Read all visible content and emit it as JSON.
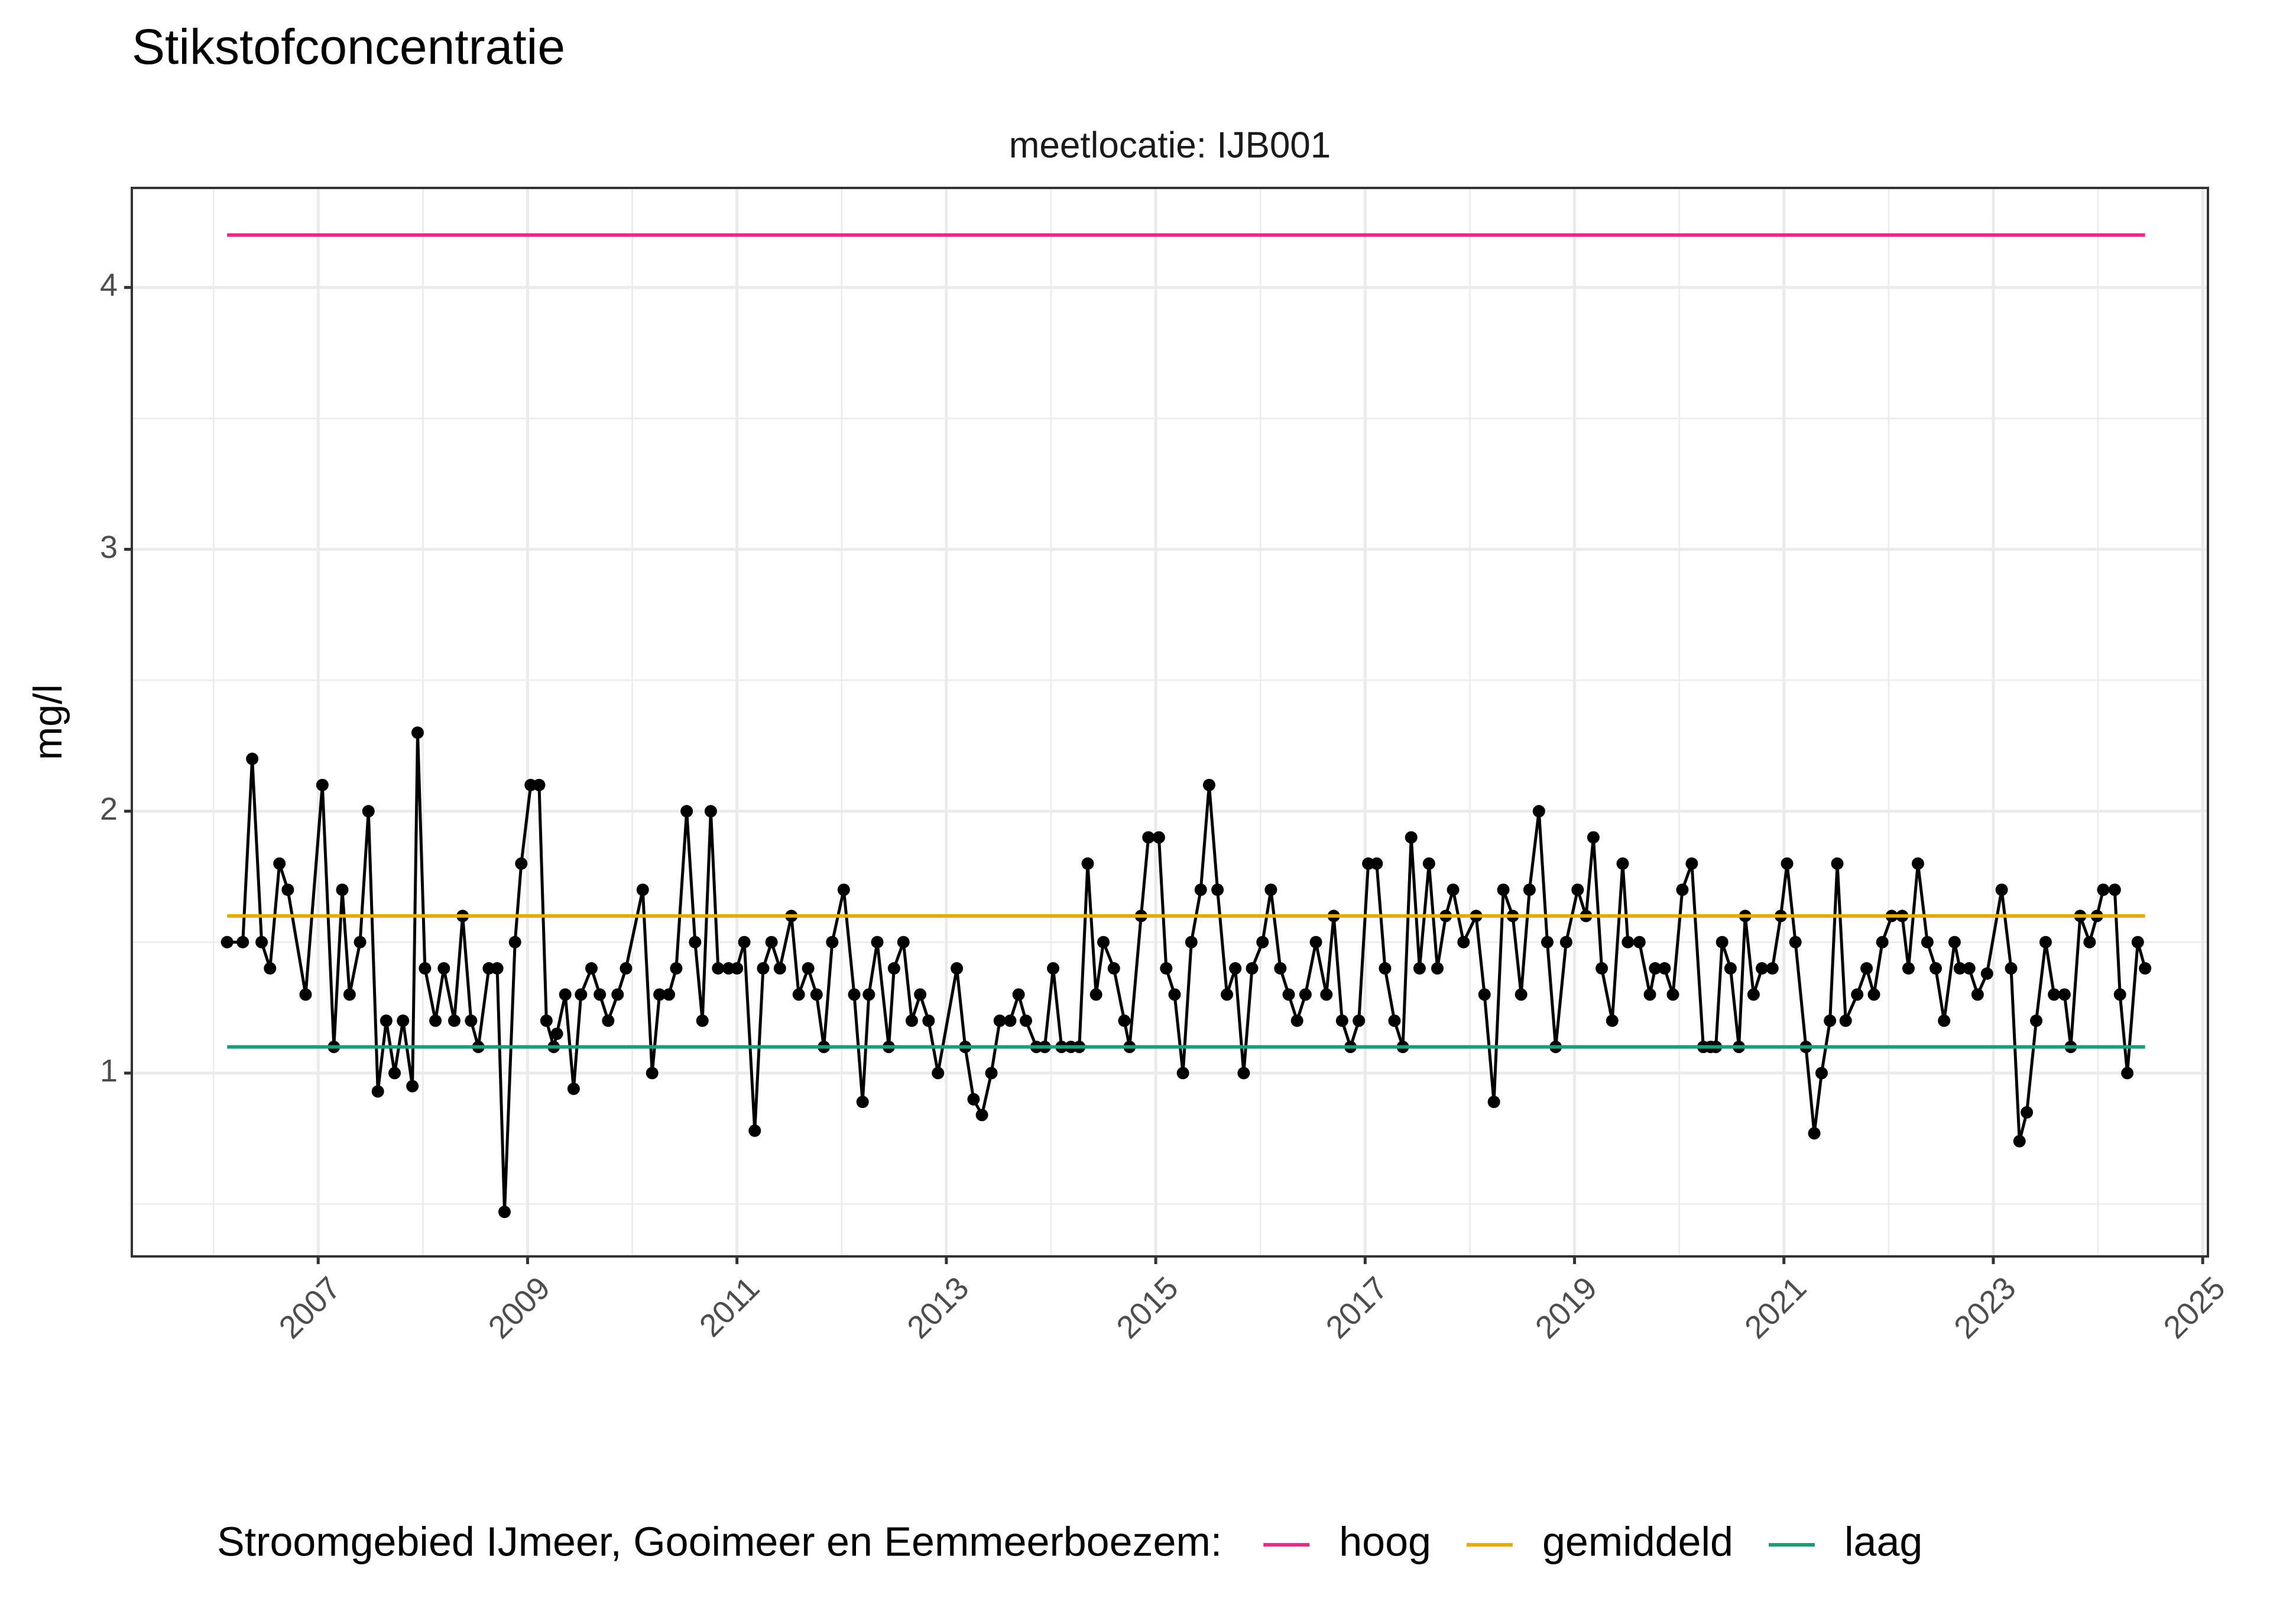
{
  "chart_data": {
    "type": "line",
    "title": "Stikstofconcentratie",
    "subtitle": "meetlocatie: IJB001",
    "y_label": "mg/l",
    "legend_title": "Stroomgebied IJmeer, Gooimeer en Eemmeerboezem:",
    "legend_position": "bottom",
    "grid": true,
    "xlim": [
      2005.22,
      2025.05
    ],
    "ylim": [
      0.3,
      4.38
    ],
    "xticks": [
      2007,
      2009,
      2011,
      2013,
      2015,
      2017,
      2019,
      2021,
      2023,
      2025
    ],
    "yticks": [
      1,
      2,
      3,
      4
    ],
    "series": [
      {
        "color": "#000000",
        "markers": true,
        "x": [
          2006.13,
          2006.28,
          2006.37,
          2006.46,
          2006.54,
          2006.63,
          2006.71,
          2006.88,
          2007.04,
          2007.15,
          2007.23,
          2007.3,
          2007.4,
          2007.48,
          2007.57,
          2007.65,
          2007.73,
          2007.81,
          2007.9,
          2007.95,
          2008.02,
          2008.12,
          2008.2,
          2008.3,
          2008.38,
          2008.46,
          2008.53,
          2008.63,
          2008.71,
          2008.78,
          2008.88,
          2008.94,
          2009.03,
          2009.11,
          2009.18,
          2009.25,
          2009.28,
          2009.36,
          2009.44,
          2009.51,
          2009.61,
          2009.69,
          2009.77,
          2009.86,
          2009.94,
          2010.1,
          2010.19,
          2010.26,
          2010.35,
          2010.42,
          2010.52,
          2010.6,
          2010.67,
          2010.75,
          2010.82,
          2010.92,
          2011.0,
          2011.07,
          2011.17,
          2011.25,
          2011.33,
          2011.41,
          2011.52,
          2011.59,
          2011.68,
          2011.76,
          2011.83,
          2011.91,
          2012.02,
          2012.12,
          2012.2,
          2012.26,
          2012.34,
          2012.45,
          2012.5,
          2012.59,
          2012.67,
          2012.75,
          2012.83,
          2012.92,
          2013.1,
          2013.18,
          2013.26,
          2013.34,
          2013.43,
          2013.51,
          2013.61,
          2013.69,
          2013.76,
          2013.86,
          2013.94,
          2014.02,
          2014.1,
          2014.19,
          2014.27,
          2014.35,
          2014.43,
          2014.5,
          2014.6,
          2014.7,
          2014.75,
          2014.86,
          2014.93,
          2015.03,
          2015.1,
          2015.18,
          2015.26,
          2015.34,
          2015.43,
          2015.51,
          2015.59,
          2015.68,
          2015.76,
          2015.84,
          2015.92,
          2016.02,
          2016.1,
          2016.19,
          2016.27,
          2016.35,
          2016.43,
          2016.53,
          2016.63,
          2016.7,
          2016.78,
          2016.86,
          2016.94,
          2017.03,
          2017.11,
          2017.19,
          2017.28,
          2017.36,
          2017.44,
          2017.52,
          2017.61,
          2017.69,
          2017.77,
          2017.84,
          2017.94,
          2018.06,
          2018.14,
          2018.23,
          2018.32,
          2018.41,
          2018.49,
          2018.57,
          2018.66,
          2018.74,
          2018.82,
          2018.92,
          2019.03,
          2019.11,
          2019.18,
          2019.26,
          2019.36,
          2019.46,
          2019.51,
          2019.62,
          2019.72,
          2019.77,
          2019.86,
          2019.94,
          2020.03,
          2020.12,
          2020.23,
          2020.3,
          2020.35,
          2020.41,
          2020.49,
          2020.57,
          2020.63,
          2020.71,
          2020.79,
          2020.89,
          2020.97,
          2021.03,
          2021.11,
          2021.21,
          2021.29,
          2021.36,
          2021.44,
          2021.51,
          2021.59,
          2021.7,
          2021.79,
          2021.86,
          2021.94,
          2022.03,
          2022.13,
          2022.19,
          2022.28,
          2022.37,
          2022.45,
          2022.53,
          2022.63,
          2022.68,
          2022.77,
          2022.85,
          2022.94,
          2023.08,
          2023.17,
          2023.25,
          2023.32,
          2023.41,
          2023.5,
          2023.58,
          2023.68,
          2023.74,
          2023.83,
          2023.92,
          2023.99,
          2024.05,
          2024.16,
          2024.21,
          2024.28,
          2024.38,
          2024.45
        ],
        "values": [
          1.5,
          1.5,
          2.2,
          1.5,
          1.4,
          1.8,
          1.7,
          1.3,
          2.1,
          1.1,
          1.7,
          1.3,
          1.5,
          2.0,
          0.93,
          1.2,
          1.0,
          1.2,
          0.95,
          2.3,
          1.4,
          1.2,
          1.4,
          1.2,
          1.6,
          1.2,
          1.1,
          1.4,
          1.4,
          0.47,
          1.5,
          1.8,
          2.1,
          2.1,
          1.2,
          1.1,
          1.15,
          1.3,
          0.94,
          1.3,
          1.4,
          1.3,
          1.2,
          1.3,
          1.4,
          1.7,
          1.0,
          1.3,
          1.3,
          1.4,
          2.0,
          1.5,
          1.2,
          2.0,
          1.4,
          1.4,
          1.4,
          1.5,
          0.78,
          1.4,
          1.5,
          1.4,
          1.6,
          1.3,
          1.4,
          1.3,
          1.1,
          1.5,
          1.7,
          1.3,
          0.89,
          1.3,
          1.5,
          1.1,
          1.4,
          1.5,
          1.2,
          1.3,
          1.2,
          1.0,
          1.4,
          1.1,
          0.9,
          0.84,
          1.0,
          1.2,
          1.2,
          1.3,
          1.2,
          1.1,
          1.1,
          1.4,
          1.1,
          1.1,
          1.1,
          1.8,
          1.3,
          1.5,
          1.4,
          1.2,
          1.1,
          1.6,
          1.9,
          1.9,
          1.4,
          1.3,
          1.0,
          1.5,
          1.7,
          2.1,
          1.7,
          1.3,
          1.4,
          1.0,
          1.4,
          1.5,
          1.7,
          1.4,
          1.3,
          1.2,
          1.3,
          1.5,
          1.3,
          1.6,
          1.2,
          1.1,
          1.2,
          1.8,
          1.8,
          1.4,
          1.2,
          1.1,
          1.9,
          1.4,
          1.8,
          1.4,
          1.6,
          1.7,
          1.5,
          1.6,
          1.3,
          0.89,
          1.7,
          1.6,
          1.3,
          1.7,
          2.0,
          1.5,
          1.1,
          1.5,
          1.7,
          1.6,
          1.9,
          1.4,
          1.2,
          1.8,
          1.5,
          1.5,
          1.3,
          1.4,
          1.4,
          1.3,
          1.7,
          1.8,
          1.1,
          1.1,
          1.1,
          1.5,
          1.4,
          1.1,
          1.6,
          1.3,
          1.4,
          1.4,
          1.6,
          1.8,
          1.5,
          1.1,
          0.77,
          1.0,
          1.2,
          1.8,
          1.2,
          1.3,
          1.4,
          1.3,
          1.5,
          1.6,
          1.6,
          1.4,
          1.8,
          1.5,
          1.4,
          1.2,
          1.5,
          1.4,
          1.4,
          1.3,
          1.38,
          1.7,
          1.4,
          0.74,
          0.85,
          1.2,
          1.5,
          1.3,
          1.3,
          1.1,
          1.6,
          1.5,
          1.6,
          1.7,
          1.7,
          1.3,
          1.0,
          1.5,
          1.4
        ]
      },
      {
        "name": "hoog",
        "color": "#e7298a",
        "x": [
          2006.13,
          2024.45
        ],
        "values": [
          4.2,
          4.2
        ]
      },
      {
        "name": "gemiddeld",
        "color": "#e6ab02",
        "x": [
          2006.13,
          2024.45
        ],
        "values": [
          1.6,
          1.6
        ]
      },
      {
        "name": "laag",
        "color": "#1b9e77",
        "x": [
          2006.13,
          2024.45
        ],
        "values": [
          1.1,
          1.1
        ]
      }
    ]
  }
}
